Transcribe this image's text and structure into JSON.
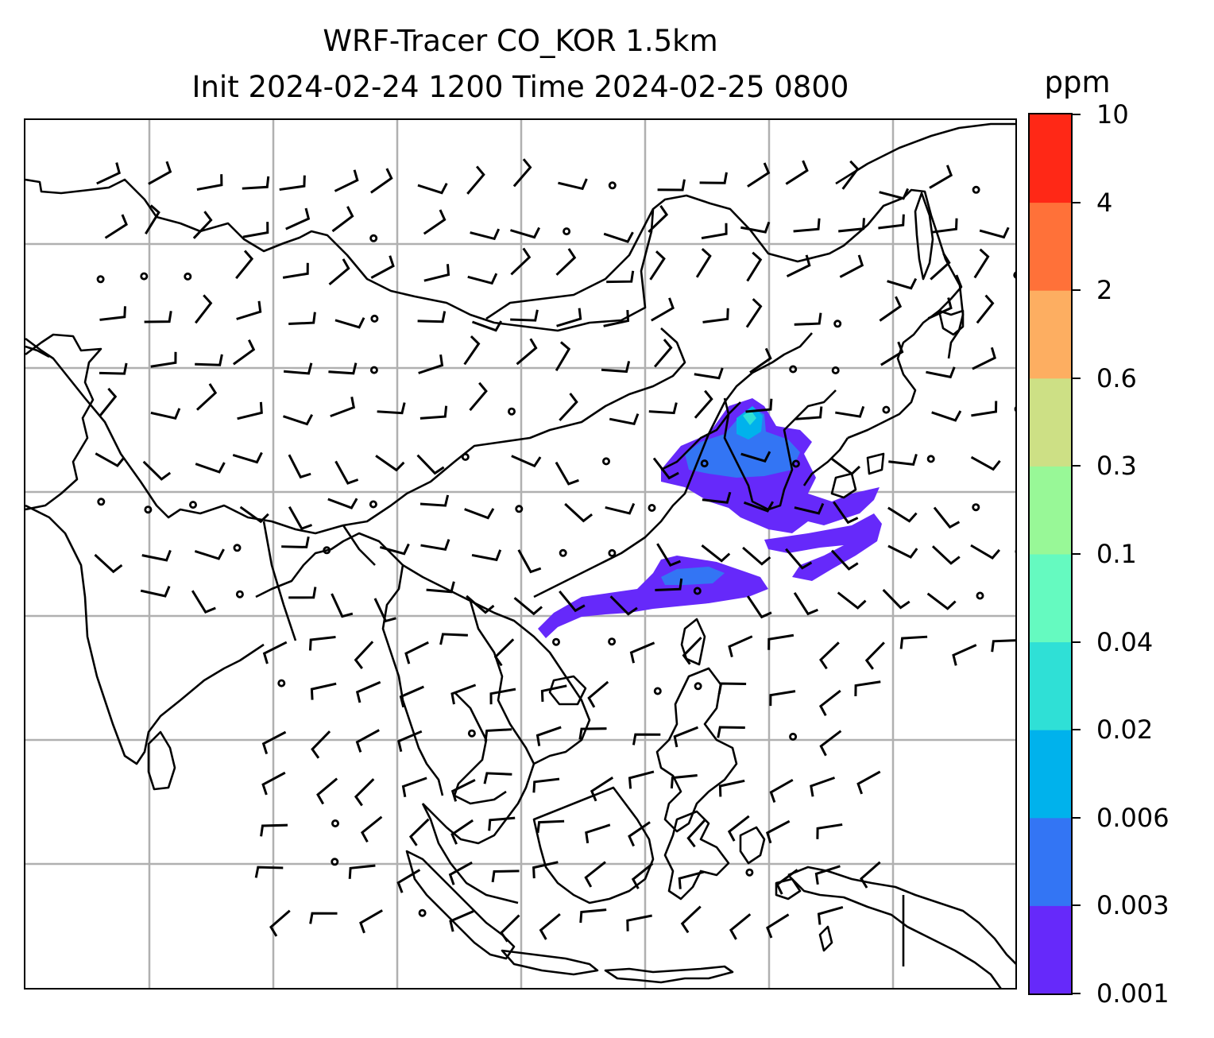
{
  "title": {
    "line1": "WRF-Tracer CO_KOR 1.5km",
    "line2": "Init 2024-02-24 1200 Time 2024-02-25 0800"
  },
  "colorbar": {
    "unit": "ppm",
    "levels": [
      "0.001",
      "0.003",
      "0.006",
      "0.02",
      "0.04",
      "0.1",
      "0.3",
      "0.6",
      "2",
      "4",
      "10"
    ],
    "colors": [
      "#6629fa",
      "#3375f4",
      "#00b2ec",
      "#2fe0d6",
      "#65fac0",
      "#98f897",
      "#cde085",
      "#fdae61",
      "#ff7139",
      "#ff2816"
    ]
  },
  "map": {
    "gridline_color": "#b0b0b0",
    "coastline_color": "#000000",
    "plume_colors": {
      "outer": "#6629fa",
      "inner": "#3375f4",
      "core": "#00b2ec",
      "peak": "#2fe0d6"
    }
  }
}
